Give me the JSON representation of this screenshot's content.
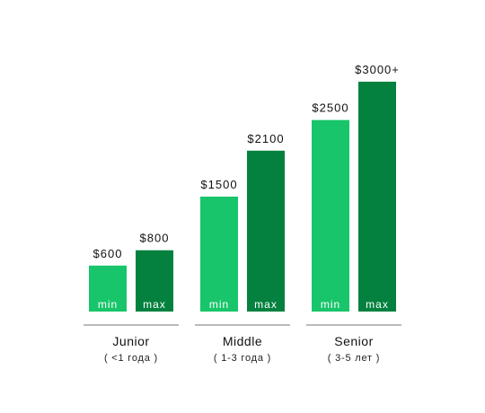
{
  "chart_data": {
    "type": "bar",
    "categories": [
      "Junior",
      "Middle",
      "Senior"
    ],
    "category_sublabels": [
      "( <1 года )",
      "( 1-3 года )",
      "( 3-5 лет )"
    ],
    "series": [
      {
        "name": "min",
        "values": [
          600,
          1500,
          2500
        ],
        "labels": [
          "$600",
          "$1500",
          "$2500"
        ],
        "color": "#18c56a"
      },
      {
        "name": "max",
        "values": [
          800,
          2100,
          3000
        ],
        "labels": [
          "$800",
          "$2100",
          "$3000+"
        ],
        "color": "#04813f"
      }
    ],
    "ylim": [
      0,
      3000
    ],
    "grid": false,
    "title": "",
    "xlabel": "",
    "ylabel": ""
  }
}
